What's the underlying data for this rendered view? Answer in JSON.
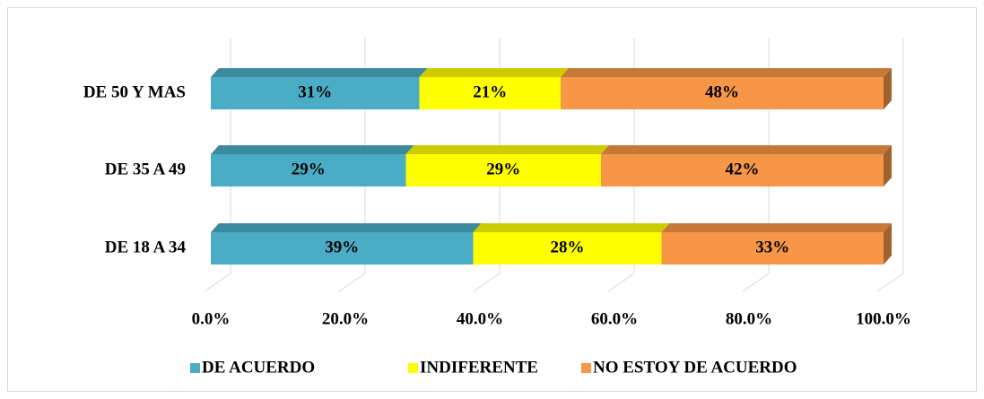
{
  "chart_data": {
    "type": "bar",
    "orientation": "horizontal",
    "stacked": true,
    "categories": [
      "DE 18 A 34",
      "DE 35 A 49",
      "DE 50 Y MAS"
    ],
    "series": [
      {
        "name": "DE ACUERDO",
        "color": "#4BACC6",
        "values": [
          39,
          29,
          31
        ],
        "value_labels": [
          "39%",
          "29%",
          "31%"
        ]
      },
      {
        "name": "INDIFERENTE",
        "color": "#FFFF00",
        "values": [
          28,
          29,
          21
        ],
        "value_labels": [
          "28%",
          "29%",
          "21%"
        ]
      },
      {
        "name": "NO ESTOY DE ACUERDO",
        "color": "#F79646",
        "values": [
          33,
          42,
          48
        ],
        "value_labels": [
          "33%",
          "42%",
          "48%"
        ]
      }
    ],
    "xlim": [
      0,
      100
    ],
    "xticks": [
      {
        "value": 0,
        "label": "0.0%"
      },
      {
        "value": 20,
        "label": "20.0%"
      },
      {
        "value": 40,
        "label": "40.0%"
      },
      {
        "value": 60,
        "label": "60.0%"
      },
      {
        "value": 80,
        "label": "80.0%"
      },
      {
        "value": 100,
        "label": "100.0%"
      }
    ],
    "grid": true,
    "legend": "bottom"
  }
}
